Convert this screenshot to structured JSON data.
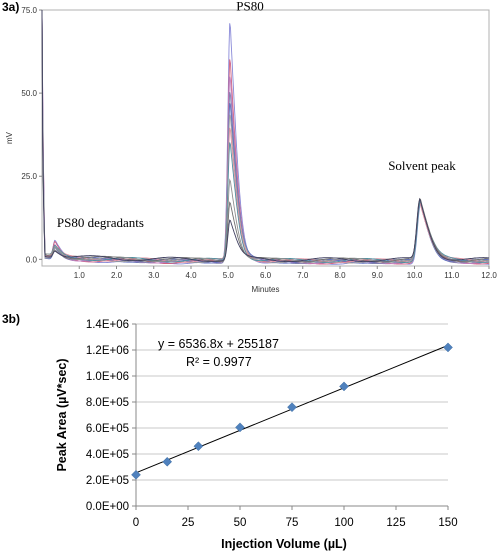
{
  "panels": {
    "a_label": "3a)",
    "b_label": "3b)"
  },
  "chart_data": [
    {
      "type": "line",
      "x_axis_label": "Minutes",
      "y_axis_label": "mV",
      "xlim": [
        0,
        12.0
      ],
      "ylim": [
        -2,
        75
      ],
      "x_ticks": [
        "1.0",
        "2.0",
        "3.0",
        "4.0",
        "5.0",
        "6.0",
        "7.0",
        "8.0",
        "9.0",
        "10.0",
        "11.0",
        "12.0"
      ],
      "x_tick_values": [
        1,
        2,
        3,
        4,
        5,
        6,
        7,
        8,
        9,
        10,
        11,
        12
      ],
      "y_ticks": [
        "0.0",
        "25.0",
        "50.0",
        "75.0"
      ],
      "y_tick_values": [
        0,
        25,
        50,
        75
      ],
      "annotations": [
        {
          "text": "PS80",
          "x": 5.0,
          "y": 73
        },
        {
          "text": "Solvent peak",
          "x": 10.2,
          "y": 25
        },
        {
          "text": "PS80 degradants",
          "x": 0.4,
          "y": 8
        }
      ],
      "peaks": {
        "ps80_time": 5.05,
        "ps80_heights": [
          72.5,
          62,
          57,
          52,
          48,
          44,
          40,
          36,
          25,
          18,
          12
        ],
        "degradant_time": 0.35,
        "degradant_heights": [
          5,
          4.5,
          4,
          3.8,
          3.5,
          3.2,
          3,
          2.8,
          2.5,
          2.2,
          2
        ],
        "solvent_time": 10.15,
        "solvent_height": 18,
        "solvent_offsets": [
          0.5,
          0,
          -0.5,
          0.3,
          -0.3,
          0.2,
          -0.2,
          0.4,
          -0.4,
          0.1,
          -0.1
        ]
      },
      "series_colors": [
        "#8a8ad8",
        "#d06080",
        "#c080c0",
        "#8080b0",
        "#6070c0",
        "#a0a0a0",
        "#e090a0",
        "#5090a0",
        "#909090",
        "#707070",
        "#404060"
      ]
    },
    {
      "type": "scatter",
      "x": [
        0,
        15,
        30,
        50,
        75,
        100,
        150
      ],
      "y": [
        240000,
        340000,
        460000,
        605000,
        760000,
        920000,
        1220000
      ],
      "xlabel": "Injection Volume (µL)",
      "ylabel": "Peak Area (µV*sec)",
      "xlim": [
        0,
        150
      ],
      "ylim": [
        0,
        1400000
      ],
      "x_ticks": [
        "0",
        "25",
        "50",
        "75",
        "100",
        "125",
        "150"
      ],
      "x_tick_values": [
        0,
        25,
        50,
        75,
        100,
        125,
        150
      ],
      "y_ticks": [
        "0.0E+00",
        "2.0E+05",
        "4.0E+05",
        "6.0E+05",
        "8.0E+05",
        "1.0E+06",
        "1.2E+06",
        "1.4E+06"
      ],
      "y_tick_values": [
        0,
        200000,
        400000,
        600000,
        800000,
        1000000,
        1200000,
        1400000
      ],
      "grid": true,
      "trendline": {
        "slope": 6536.8,
        "intercept": 255187
      },
      "equation": "y = 6536.8x + 255187",
      "r_squared": "R² = 0.9977",
      "marker_color": "#4f81bd"
    }
  ]
}
